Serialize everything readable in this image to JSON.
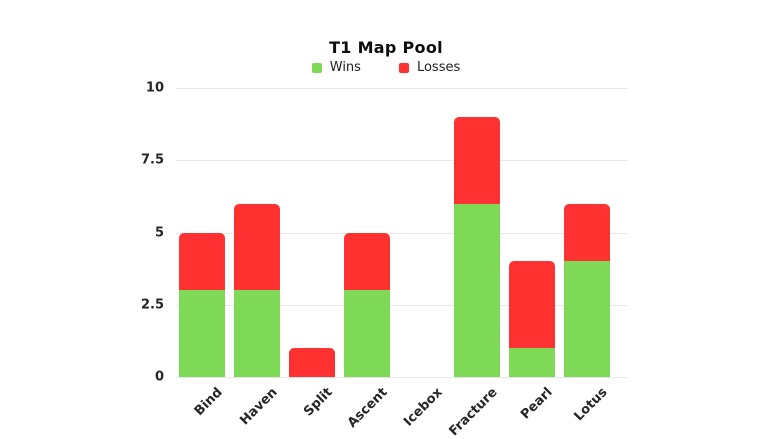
{
  "page": {
    "background": "#ffffff"
  },
  "chart_data": {
    "type": "bar",
    "stacked": true,
    "title": "T1 Map Pool",
    "categories": [
      "Bind",
      "Haven",
      "Split",
      "Ascent",
      "Icebox",
      "Fracture",
      "Pearl",
      "Lotus"
    ],
    "series": [
      {
        "name": "Wins",
        "color": "#7ED957",
        "values": [
          3,
          3,
          0,
          3,
          0,
          6,
          1,
          4
        ]
      },
      {
        "name": "Losses",
        "color": "#FF3131",
        "values": [
          2,
          3,
          1,
          2,
          0,
          3,
          3,
          2
        ]
      }
    ],
    "totals": [
      5,
      6,
      1,
      5,
      0,
      9,
      4,
      6
    ],
    "xlabel": "",
    "ylabel": "",
    "ylim": [
      0,
      10
    ],
    "yticks": [
      0,
      2.5,
      5,
      7.5,
      10
    ],
    "ytick_labels": [
      "0",
      "2.5",
      "5",
      "7.5",
      "10"
    ],
    "grid": true,
    "legend_position": "top"
  },
  "colors": {
    "wins": "#7ED957",
    "losses": "#FF3131",
    "gridline": "#e9e9e9",
    "axis_text": "#262626",
    "title_text": "#0d0d0d",
    "background": "#ffffff"
  }
}
